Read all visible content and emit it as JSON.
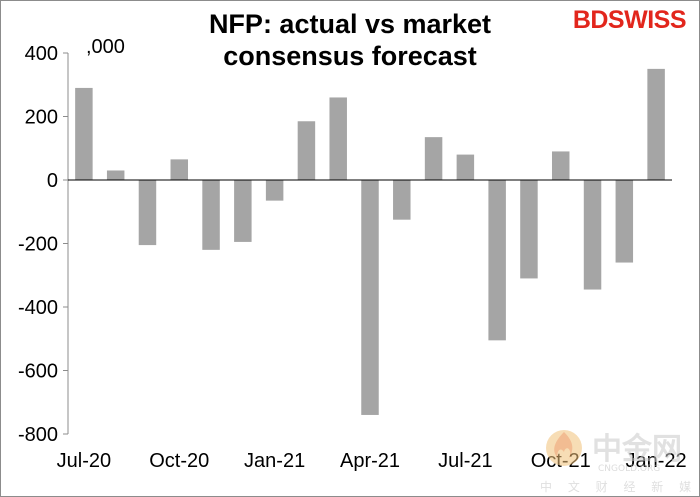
{
  "brand": {
    "part1": "BD",
    "part2": "SWISS"
  },
  "watermark": {
    "logo_text": "中金网",
    "sub_text": "CNGOLD.ORG",
    "caption": "中 文 财 经 新 媒 体"
  },
  "chart_data": {
    "type": "bar",
    "title": "NFP: actual vs market consensus forecast",
    "unit_label": ",000",
    "xlabel": "",
    "ylabel": "",
    "ylim": [
      -800,
      400
    ],
    "y_ticks": [
      -800,
      -600,
      -400,
      -200,
      0,
      200,
      400
    ],
    "y_tick_labels": [
      "-800",
      "-600",
      "-400",
      "-200",
      "0",
      "200",
      "400"
    ],
    "grid": false,
    "legend": "none",
    "bar_color": "#a5a5a5",
    "categories": [
      "Jul-20",
      "Aug-20",
      "Sep-20",
      "Oct-20",
      "Nov-20",
      "Dec-20",
      "Jan-21",
      "Feb-21",
      "Mar-21",
      "Apr-21",
      "May-21",
      "Jun-21",
      "Jul-21",
      "Aug-21",
      "Sep-21",
      "Oct-21",
      "Nov-21",
      "Dec-21",
      "Jan-22"
    ],
    "x_tick_labels": [
      "Jul-20",
      "Oct-20",
      "Jan-21",
      "Apr-21",
      "Jul-21",
      "Oct-21",
      "Jan-22"
    ],
    "x_tick_label_indices": [
      0,
      3,
      6,
      9,
      12,
      15,
      18
    ],
    "values": [
      290,
      30,
      -205,
      65,
      -220,
      -195,
      -65,
      185,
      260,
      -740,
      -125,
      135,
      80,
      -505,
      -310,
      90,
      -345,
      -260,
      350
    ]
  }
}
